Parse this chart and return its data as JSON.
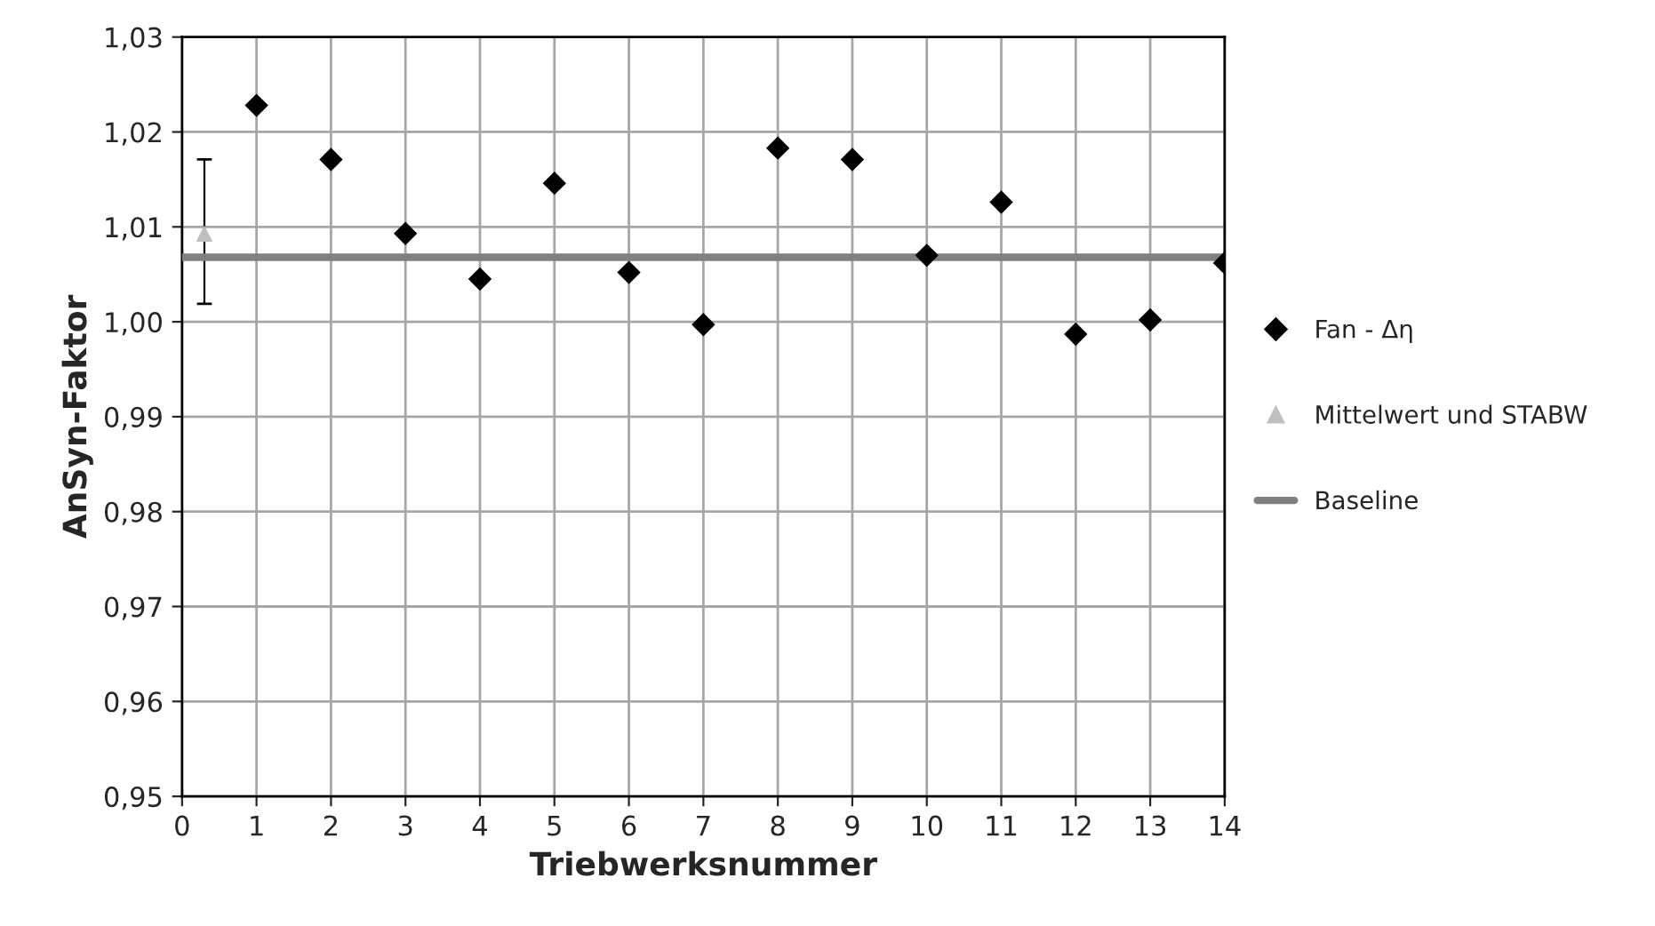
{
  "chart_data": {
    "type": "scatter",
    "xlabel": "Triebwerksnummer",
    "ylabel": "AnSyn-Faktor",
    "xlim": [
      0,
      14
    ],
    "xticks": [
      0,
      1,
      2,
      3,
      4,
      5,
      6,
      7,
      8,
      9,
      10,
      11,
      12,
      13,
      14
    ],
    "ylim": [
      0.95,
      1.03
    ],
    "yticks": [
      {
        "value": 0.95,
        "label": "0,95"
      },
      {
        "value": 0.96,
        "label": "0,96"
      },
      {
        "value": 0.97,
        "label": "0,97"
      },
      {
        "value": 0.98,
        "label": "0,98"
      },
      {
        "value": 0.99,
        "label": "0,99"
      },
      {
        "value": 1.0,
        "label": "1,00"
      },
      {
        "value": 1.01,
        "label": "1,01"
      },
      {
        "value": 1.02,
        "label": "1,02"
      },
      {
        "value": 1.03,
        "label": "1,03"
      }
    ],
    "grid": true,
    "legend": "right",
    "series": [
      {
        "name": "Fan - Δη",
        "marker": "diamond",
        "color": "#000000",
        "x": [
          1,
          2,
          3,
          4,
          5,
          6,
          7,
          8,
          9,
          10,
          11,
          12,
          13,
          14
        ],
        "values": [
          1.0228,
          1.0171,
          1.0093,
          1.0045,
          1.0146,
          1.0052,
          0.9997,
          1.0183,
          1.0171,
          1.007,
          1.0126,
          0.9987,
          1.0002,
          1.0062
        ]
      },
      {
        "name": "Mittelwert und STABW",
        "type": "scatter",
        "marker": "triangle",
        "color": "#bfbfbf",
        "x": [
          0.3
        ],
        "values": [
          1.0093
        ],
        "errors": [
          [
            1.0019,
            1.0171
          ]
        ]
      },
      {
        "name": "Baseline",
        "type": "line",
        "marker": "none",
        "color": "#808080",
        "x": [
          0,
          14
        ],
        "values": [
          1.0068,
          1.0068
        ]
      }
    ]
  }
}
